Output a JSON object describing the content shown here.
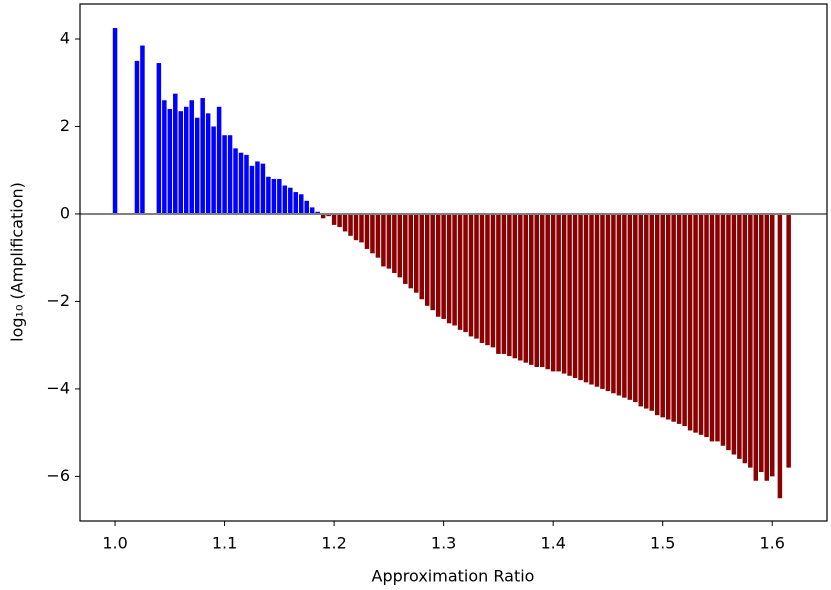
{
  "chart_data": {
    "type": "bar",
    "xlabel": "Approximation Ratio",
    "ylabel": "log₁₀ (Amplification)",
    "x": [
      1.0,
      1.02,
      1.025,
      1.04,
      1.045,
      1.05,
      1.055,
      1.06,
      1.065,
      1.07,
      1.075,
      1.08,
      1.085,
      1.09,
      1.095,
      1.1,
      1.105,
      1.11,
      1.115,
      1.12,
      1.125,
      1.13,
      1.135,
      1.14,
      1.145,
      1.15,
      1.155,
      1.16,
      1.165,
      1.17,
      1.175,
      1.18,
      1.185,
      1.19,
      1.195,
      1.2,
      1.205,
      1.21,
      1.215,
      1.22,
      1.225,
      1.23,
      1.235,
      1.24,
      1.245,
      1.25,
      1.255,
      1.26,
      1.265,
      1.27,
      1.275,
      1.28,
      1.285,
      1.29,
      1.295,
      1.3,
      1.305,
      1.31,
      1.315,
      1.32,
      1.325,
      1.33,
      1.335,
      1.34,
      1.345,
      1.35,
      1.355,
      1.36,
      1.365,
      1.37,
      1.375,
      1.38,
      1.385,
      1.39,
      1.395,
      1.4,
      1.405,
      1.41,
      1.415,
      1.42,
      1.425,
      1.43,
      1.435,
      1.44,
      1.445,
      1.45,
      1.455,
      1.46,
      1.465,
      1.47,
      1.475,
      1.48,
      1.485,
      1.49,
      1.495,
      1.5,
      1.505,
      1.51,
      1.515,
      1.52,
      1.525,
      1.53,
      1.535,
      1.54,
      1.545,
      1.55,
      1.555,
      1.56,
      1.565,
      1.57,
      1.575,
      1.58,
      1.585,
      1.59,
      1.595,
      1.6,
      1.607,
      1.615
    ],
    "values": [
      4.25,
      3.5,
      3.85,
      3.45,
      2.6,
      2.4,
      2.75,
      2.35,
      2.45,
      2.6,
      2.2,
      2.65,
      2.3,
      2.0,
      2.45,
      1.8,
      1.8,
      1.5,
      1.4,
      1.35,
      1.1,
      1.2,
      1.15,
      0.85,
      0.8,
      0.8,
      0.65,
      0.6,
      0.5,
      0.45,
      0.3,
      0.15,
      0.05,
      -0.1,
      -0.05,
      -0.25,
      -0.3,
      -0.4,
      -0.5,
      -0.6,
      -0.65,
      -0.8,
      -0.9,
      -1.0,
      -1.2,
      -1.25,
      -1.35,
      -1.45,
      -1.6,
      -1.7,
      -1.8,
      -1.95,
      -2.1,
      -2.2,
      -2.35,
      -2.4,
      -2.5,
      -2.55,
      -2.65,
      -2.7,
      -2.8,
      -2.85,
      -2.95,
      -3.0,
      -3.05,
      -3.2,
      -3.2,
      -3.25,
      -3.3,
      -3.35,
      -3.4,
      -3.45,
      -3.5,
      -3.5,
      -3.55,
      -3.6,
      -3.6,
      -3.65,
      -3.7,
      -3.75,
      -3.8,
      -3.85,
      -3.9,
      -3.95,
      -4.0,
      -4.05,
      -4.1,
      -4.15,
      -4.2,
      -4.25,
      -4.3,
      -4.4,
      -4.45,
      -4.5,
      -4.6,
      -4.65,
      -4.7,
      -4.75,
      -4.8,
      -4.85,
      -4.95,
      -5.0,
      -5.05,
      -5.1,
      -5.2,
      -5.2,
      -5.3,
      -5.4,
      -5.5,
      -5.6,
      -5.7,
      -5.8,
      -6.1,
      -5.9,
      -6.1,
      -6.0,
      -6.5,
      -5.8
    ],
    "color_positive": "#0000ff",
    "color_negative": "#8b0000",
    "hline": 0,
    "hline_color": "#808080",
    "xlim": [
      0.968,
      1.65
    ],
    "ylim": [
      -7.02,
      4.8
    ],
    "xticks": [
      {
        "value": 1,
        "label": "1.0"
      },
      1.1,
      1.2,
      1.3,
      1.4,
      1.5,
      1.6
    ],
    "yticks": [
      {
        "value": -6,
        "label": "−6"
      },
      {
        "value": -4,
        "label": "−4"
      },
      {
        "value": -2,
        "label": "−2"
      },
      0,
      2,
      4
    ]
  }
}
